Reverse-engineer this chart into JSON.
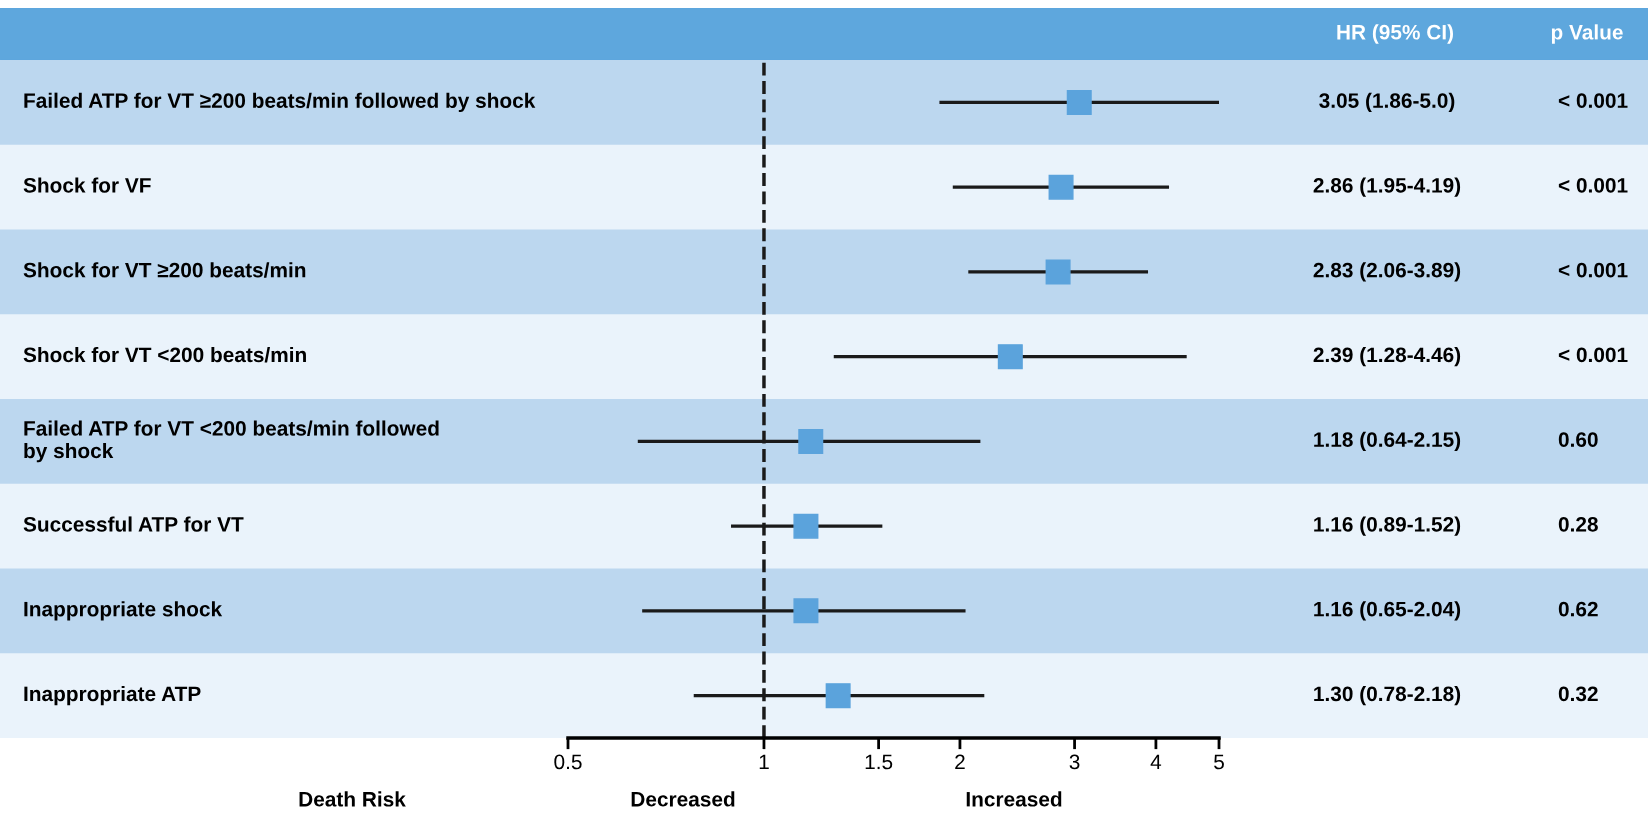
{
  "chart_data": {
    "type": "scatter",
    "orientation": "horizontal",
    "log": "x",
    "marker": "square",
    "grid": false,
    "categories": [
      "Failed ATP for VT ≥200 beats/min followed by shock",
      "Shock for VF",
      "Shock for VT ≥200 beats/min",
      "Shock for VT <200 beats/min",
      "Failed ATP for VT <200 beats/min followed\nby shock",
      "Successful ATP for VT",
      "Inappropriate shock",
      "Inappropriate ATP"
    ],
    "series": [
      {
        "color": "#5ba3dc",
        "values": [
          3.05,
          2.86,
          2.83,
          2.39,
          1.18,
          1.16,
          1.16,
          1.3
        ],
        "errors": [
          [
            1.86,
            5.0
          ],
          [
            1.95,
            4.19
          ],
          [
            2.06,
            3.89
          ],
          [
            1.28,
            4.46
          ],
          [
            0.64,
            2.15
          ],
          [
            0.89,
            1.52
          ],
          [
            0.65,
            2.04
          ],
          [
            0.78,
            2.18
          ]
        ],
        "value_labels": [
          "3.05 (1.86-5.0)",
          "2.86 (1.95-4.19)",
          "2.83 (2.06-3.89)",
          "2.39 (1.28-4.46)",
          "1.18 (0.64-2.15)",
          "1.16 (0.89-1.52)",
          "1.16 (0.65-2.04)",
          "1.30 (0.78-2.18)"
        ]
      }
    ],
    "xlim": [
      0.5,
      5
    ],
    "xticks": [
      0.5,
      1,
      1.5,
      2,
      3,
      4,
      5
    ],
    "ref_lines": [
      {
        "axis": "x",
        "value": 1,
        "line_style": "dashed",
        "color": "#1a1a1a"
      }
    ],
    "bands": [
      {
        "axis": "y",
        "from": "Failed ATP for VT ≥200 beats/min followed by shock",
        "to": "Failed ATP for VT ≥200 beats/min followed by shock",
        "color": "#bcd7ef"
      },
      {
        "axis": "y",
        "from": "Shock for VT ≥200 beats/min",
        "to": "Shock for VT ≥200 beats/min",
        "color": "#bcd7ef"
      },
      {
        "axis": "y",
        "from": "Failed ATP for VT <200 beats/min followed\nby shock",
        "to": "Failed ATP for VT <200 beats/min followed\nby shock",
        "color": "#bcd7ef"
      },
      {
        "axis": "y",
        "from": "Inappropriate shock",
        "to": "Inappropriate shock",
        "color": "#bcd7ef"
      }
    ],
    "annotations": [
      "HR (95% CI)",
      "p Value",
      "< 0.001",
      "< 0.001",
      "< 0.001",
      "< 0.001",
      "0.60",
      "0.28",
      "0.62",
      "0.32",
      "Death Risk",
      "Decreased",
      "Increased"
    ]
  }
}
